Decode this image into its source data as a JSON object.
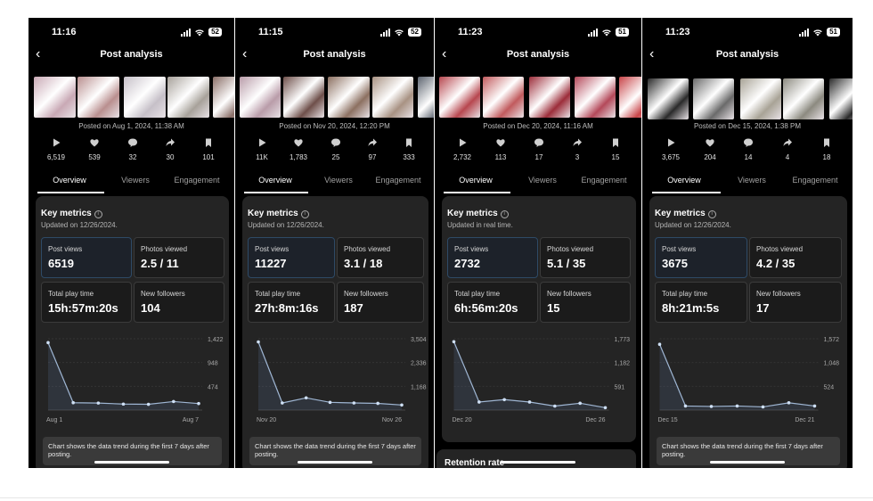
{
  "phones": [
    {
      "time": "11:16",
      "battery": "52",
      "title": "Post analysis",
      "posted": "Posted on Aug 1, 2024, 11:38 AM",
      "thumb_colors": [
        "#c9a9b5",
        "#b98f8f",
        "#c6c0c8",
        "#a7a19a",
        "#8a6f68"
      ],
      "stats": [
        "6,519",
        "539",
        "32",
        "30",
        "101"
      ],
      "tabs": [
        "Overview",
        "Viewers",
        "Engagement"
      ],
      "key_metrics": "Key metrics",
      "updated": "Updated on 12/26/2024.",
      "metrics": [
        {
          "label": "Post views",
          "value": "6519"
        },
        {
          "label": "Photos viewed",
          "value": "2.5 / 11"
        },
        {
          "label": "Total play time",
          "value": "15h:57m:20s"
        },
        {
          "label": "New followers",
          "value": "104"
        }
      ],
      "chart": {
        "y_ticks": [
          "1,422",
          "948",
          "474"
        ],
        "x_start": "Aug 1",
        "x_end": "Aug 7",
        "values": [
          1345,
          147,
          140,
          120,
          115,
          170,
          130
        ],
        "ymax": 1422
      },
      "note": "Chart shows the data trend during the first 7 days after posting."
    },
    {
      "time": "11:15",
      "battery": "52",
      "title": "Post analysis",
      "posted": "Posted on Nov 20, 2024, 12:20 PM",
      "thumb_colors": [
        "#b99ca9",
        "#6e4f4a",
        "#8c7061",
        "#a89283",
        "#5e6570"
      ],
      "stats": [
        "11K",
        "1,783",
        "25",
        "97",
        "333"
      ],
      "tabs": [
        "Overview",
        "Viewers",
        "Engagement"
      ],
      "key_metrics": "Key metrics",
      "updated": "Updated on 12/26/2024.",
      "metrics": [
        {
          "label": "Post views",
          "value": "11227"
        },
        {
          "label": "Photos viewed",
          "value": "3.1 / 18"
        },
        {
          "label": "Total play time",
          "value": "27h:8m:16s"
        },
        {
          "label": "New followers",
          "value": "187"
        }
      ],
      "chart": {
        "y_ticks": [
          "3,504",
          "2,336",
          "1,168"
        ],
        "x_start": "Nov 20",
        "x_end": "Nov 26",
        "values": [
          3350,
          350,
          600,
          380,
          350,
          330,
          250
        ],
        "ymax": 3504
      },
      "note": "Chart shows the data trend during the first 7 days after posting."
    },
    {
      "time": "11:23",
      "battery": "51",
      "title": "Post analysis",
      "posted": "Posted on Dec 20, 2024, 11:16 AM",
      "thumb_colors": [
        "#b7474f",
        "#c15a5d",
        "#9c2d3a",
        "#b4495a",
        "#c84448"
      ],
      "stats": [
        "2,732",
        "113",
        "17",
        "3",
        "15"
      ],
      "tabs": [
        "Overview",
        "Viewers",
        "Engagement"
      ],
      "key_metrics": "Key metrics",
      "updated": "Updated in real time.",
      "metrics": [
        {
          "label": "Post views",
          "value": "2732"
        },
        {
          "label": "Photos viewed",
          "value": "5.1 / 35"
        },
        {
          "label": "Total play time",
          "value": "6h:56m:20s"
        },
        {
          "label": "New followers",
          "value": "15"
        }
      ],
      "chart": {
        "y_ticks": [
          "1,773",
          "1,182",
          "591"
        ],
        "x_start": "Dec 20",
        "x_end": "Dec 26",
        "values": [
          1700,
          200,
          260,
          200,
          100,
          170,
          60
        ],
        "ymax": 1773
      },
      "note": "",
      "retention": "Retention rate"
    },
    {
      "time": "11:23",
      "battery": "51",
      "title": "Post analysis",
      "posted": "Posted on Dec 15, 2024, 1:38 PM",
      "thumb_colors": [
        "#2a2a2a",
        "#6a6a6a",
        "#a8a396",
        "#8c8a80",
        "#2a2a2a"
      ],
      "stats": [
        "3,675",
        "204",
        "14",
        "4",
        "18"
      ],
      "tabs": [
        "Overview",
        "Viewers",
        "Engagement"
      ],
      "key_metrics": "Key metrics",
      "updated": "Updated on 12/26/2024.",
      "metrics": [
        {
          "label": "Post views",
          "value": "3675"
        },
        {
          "label": "Photos viewed",
          "value": "4.2 / 35"
        },
        {
          "label": "Total play time",
          "value": "8h:21m:5s"
        },
        {
          "label": "New followers",
          "value": "17"
        }
      ],
      "chart": {
        "y_ticks": [
          "1,572",
          "1,048",
          "524"
        ],
        "x_start": "Dec 15",
        "x_end": "Dec 21",
        "values": [
          1450,
          90,
          80,
          90,
          70,
          160,
          90
        ],
        "ymax": 1572
      },
      "note": "Chart shows the data trend during the first 7 days after posting."
    }
  ]
}
